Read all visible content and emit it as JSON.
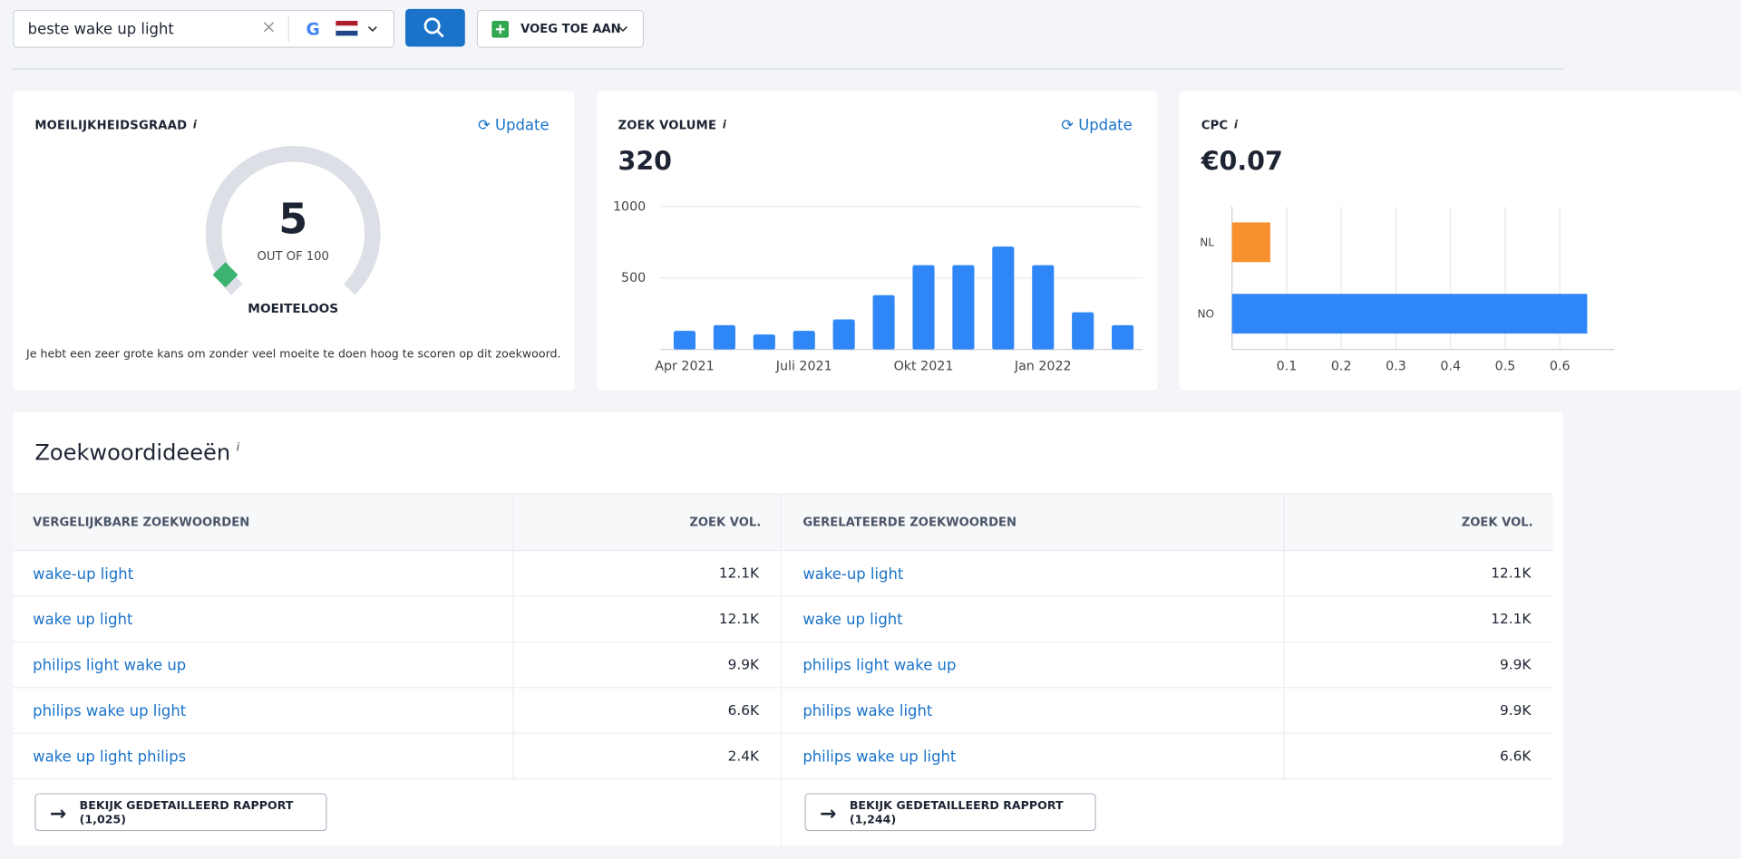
{
  "search": {
    "query": "beste wake up light",
    "add_button": "VOEG TOE AAN"
  },
  "difficulty": {
    "title": "MOEILIJKHEIDSGRAAD",
    "info": "i",
    "update": "Update",
    "score": 5,
    "score_label": "OUT OF 100",
    "gauge_range": [
      0,
      100
    ],
    "level": "MOEITELOOS",
    "description": "Je hebt een zeer grote kans om zonder veel moeite te doen hoog te scoren op dit zoekwoord."
  },
  "volume": {
    "title": "ZOEK VOLUME",
    "info": "i",
    "update": "Update",
    "total": "320",
    "chart": {
      "type": "bar",
      "categories": [
        "Apr 2021",
        null,
        null,
        "Juli 2021",
        null,
        null,
        "Okt 2021",
        null,
        null,
        "Jan 2022",
        null,
        null
      ],
      "values": [
        130,
        170,
        105,
        130,
        210,
        380,
        590,
        590,
        720,
        590,
        260,
        170
      ],
      "color": "#2f86f6",
      "ylim": [
        0,
        1000
      ],
      "yticks": [
        500,
        1000
      ],
      "grid": true
    }
  },
  "cpc": {
    "title": "CPC",
    "info": "i",
    "value": "€0.07",
    "chart": {
      "type": "barh",
      "categories": [
        "NL",
        "NO"
      ],
      "values": [
        0.07,
        0.65
      ],
      "colors": [
        "#f7912e",
        "#2f86f6"
      ],
      "xlim": [
        0,
        0.7
      ],
      "xticks": [
        0.1,
        0.2,
        0.3,
        0.4,
        0.5,
        0.6
      ],
      "grid": true
    }
  },
  "ideas": {
    "title": "Zoekwoordideeën",
    "info": "i",
    "tables": [
      {
        "headers": [
          "VERGELIJKBARE ZOEKWOORDEN",
          "ZOEK VOL."
        ],
        "rows": [
          [
            "wake-up light",
            "12.1K"
          ],
          [
            "wake up light",
            "12.1K"
          ],
          [
            "philips light wake up",
            "9.9K"
          ],
          [
            "philips wake up light",
            "6.6K"
          ],
          [
            "wake up light philips",
            "2.4K"
          ]
        ],
        "button": "BEKIJK GEDETAILLEERD RAPPORT (1,025)"
      },
      {
        "headers": [
          "GERELATEERDE ZOEKWOORDEN",
          "ZOEK VOL."
        ],
        "rows": [
          [
            "wake-up light",
            "12.1K"
          ],
          [
            "wake up light",
            "12.1K"
          ],
          [
            "philips light wake up",
            "9.9K"
          ],
          [
            "philips wake light",
            "9.9K"
          ],
          [
            "philips wake up light",
            "6.6K"
          ]
        ],
        "button": "BEKIJK GEDETAILLEERD RAPPORT (1,244)"
      }
    ]
  }
}
